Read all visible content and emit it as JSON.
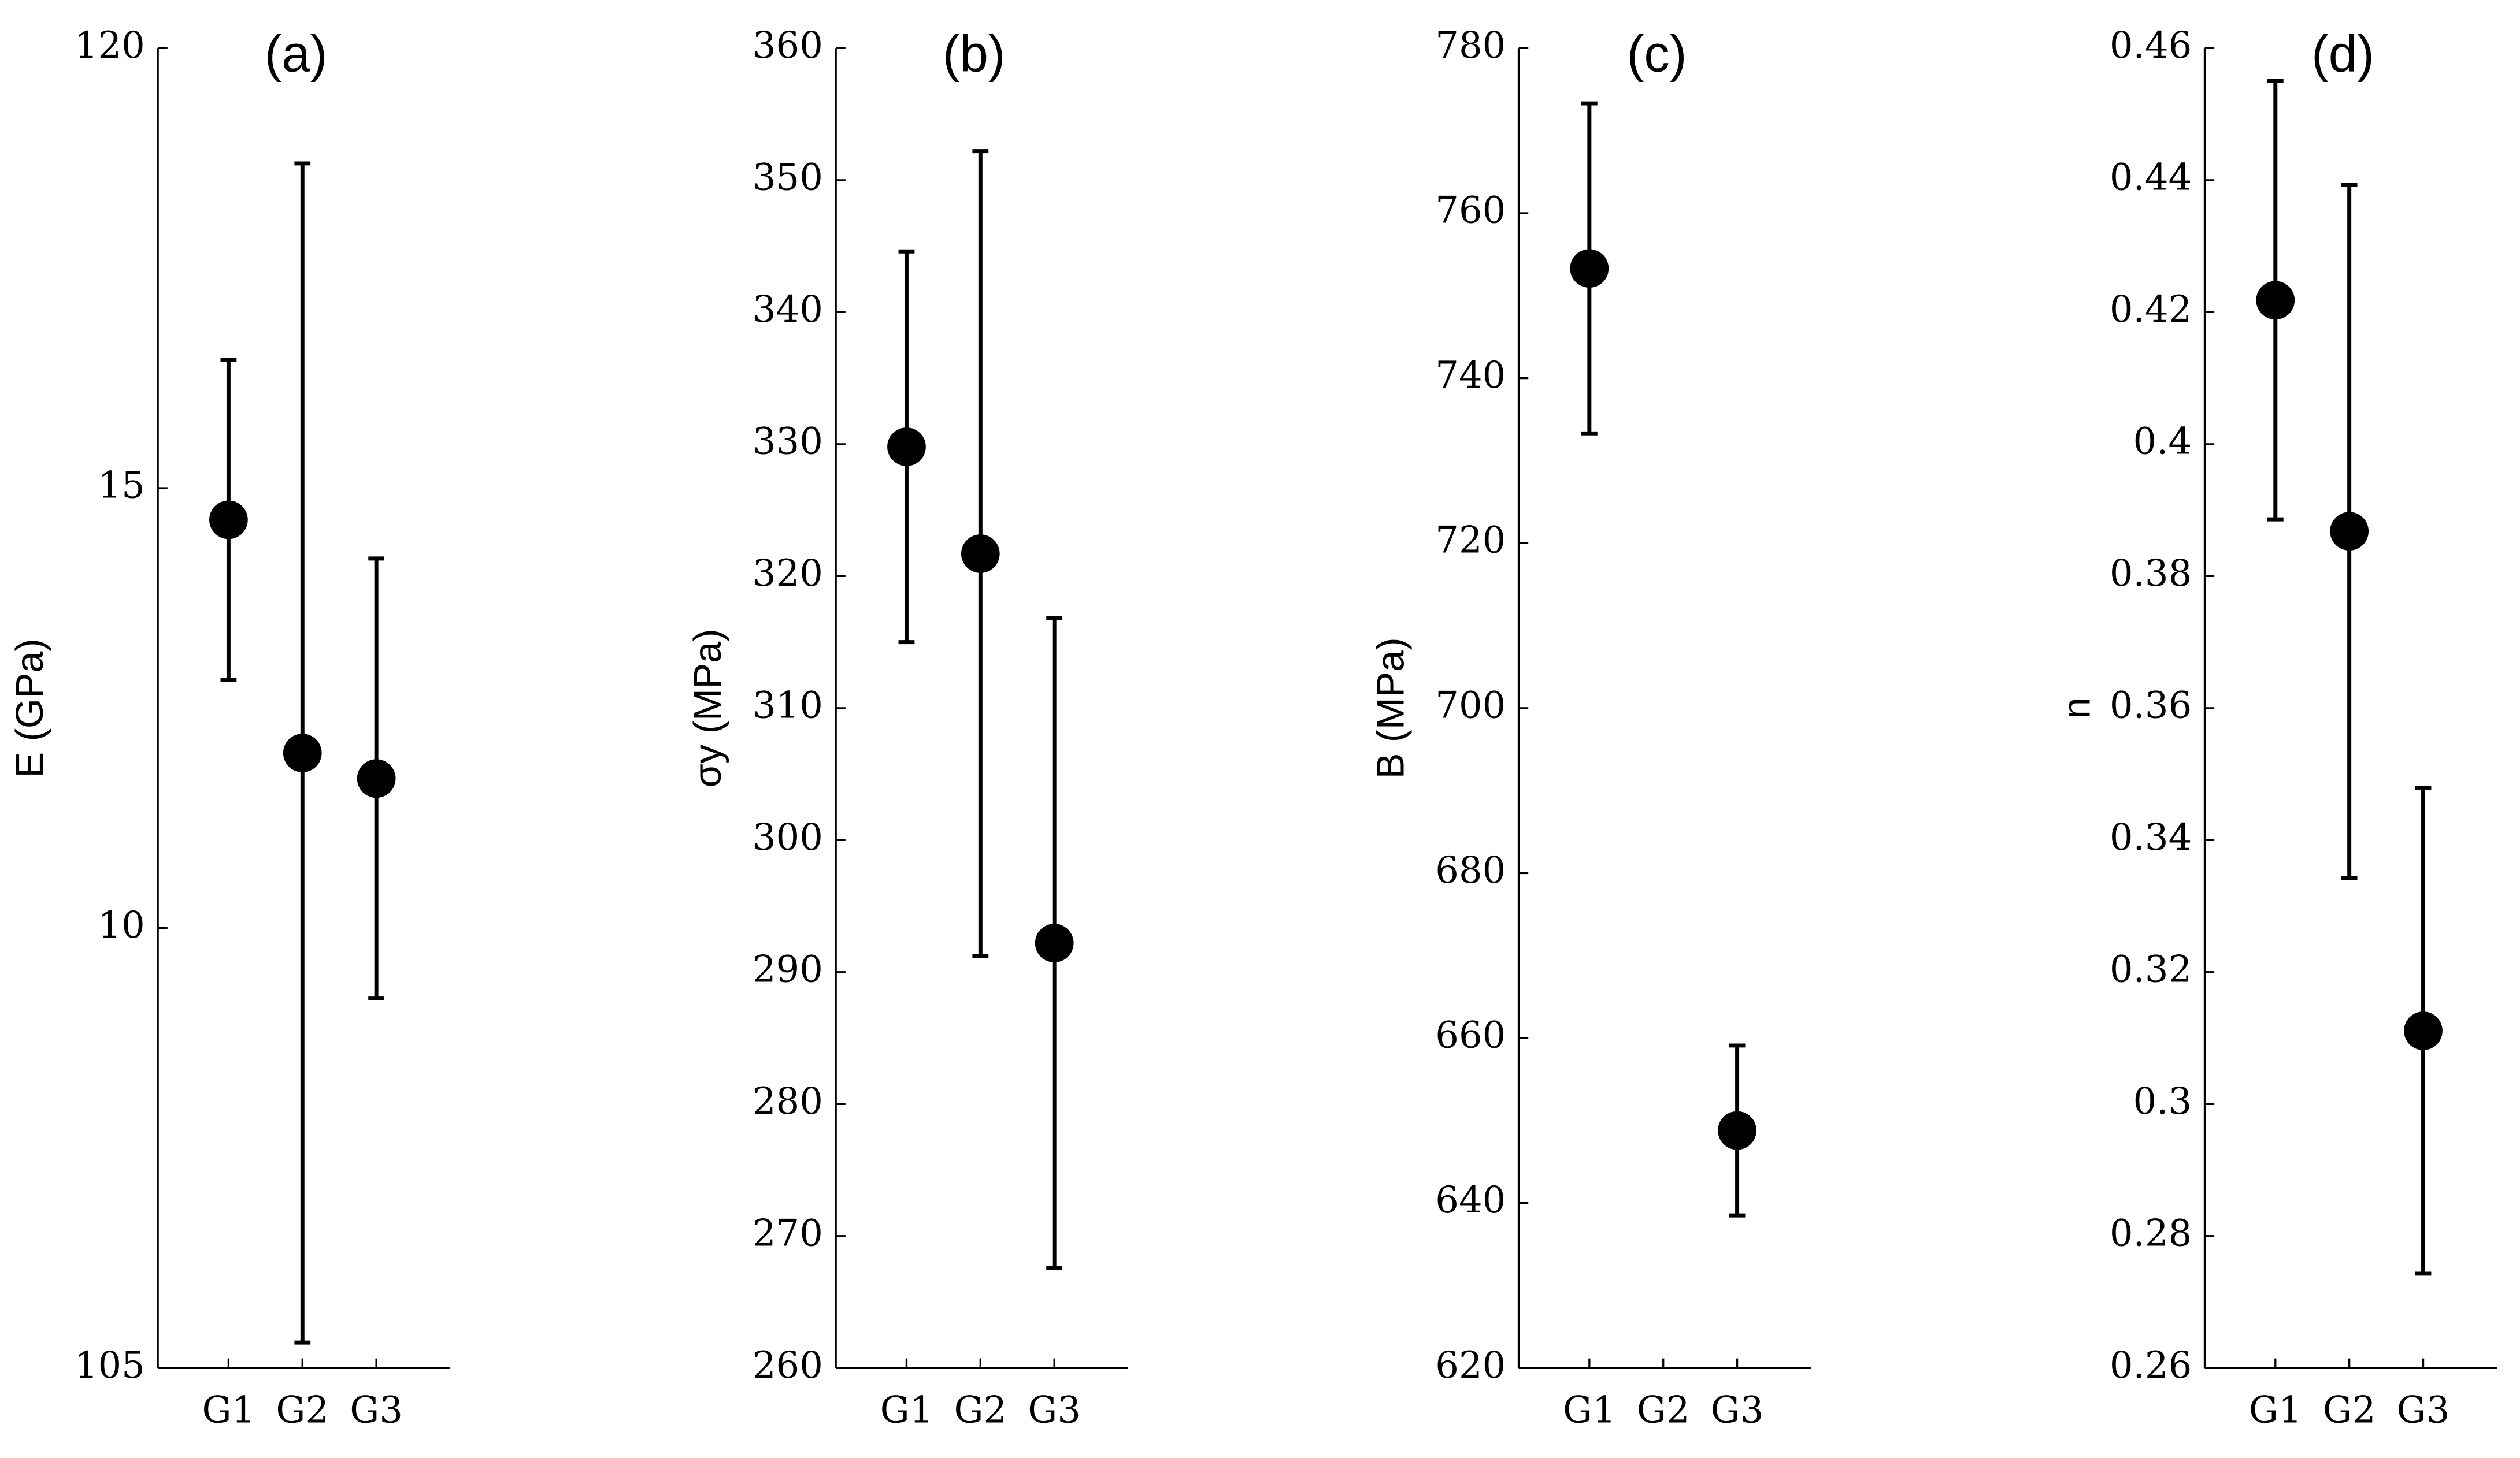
{
  "chart_data": [
    {
      "type": "scatter",
      "title": "(a)",
      "ylabel": "E (GPa)",
      "categories": [
        "G1",
        "G2",
        "G3"
      ],
      "values": [
        114.64,
        111.99,
        111.7
      ],
      "errors": [
        1.82,
        6.7,
        2.5
      ],
      "color": "#000000",
      "ylim": [
        105,
        120
      ],
      "yticks": [
        105,
        {
          "value": 110,
          "label": "10"
        },
        {
          "value": 115,
          "label": "15"
        },
        120
      ]
    },
    {
      "type": "scatter",
      "title": "(b)",
      "ylabel": "σy (MPa)",
      "categories": [
        "G1",
        "G2",
        "G3"
      ],
      "values": [
        329.8,
        321.7,
        292.2
      ],
      "errors": [
        14.8,
        30.5,
        24.6
      ],
      "color": "#000000",
      "ylim": [
        260,
        360
      ],
      "yticks": [
        260,
        270,
        280,
        290,
        300,
        310,
        320,
        330,
        340,
        350,
        360
      ]
    },
    {
      "type": "scatter",
      "title": "(c)",
      "ylabel": "B (MPa)",
      "categories": [
        "G1",
        "G2",
        "G3"
      ],
      "values": [
        753.3,
        null,
        648.8
      ],
      "errors": [
        20,
        null,
        10.3
      ],
      "color": "#000000",
      "ylim": [
        620,
        780
      ],
      "yticks": [
        620,
        640,
        660,
        680,
        700,
        720,
        740,
        760,
        780
      ]
    },
    {
      "type": "scatter",
      "title": "(d)",
      "ylabel": "n",
      "categories": [
        "G1",
        "G2",
        "G3"
      ],
      "values": [
        0.4218,
        0.3868,
        0.3111
      ],
      "errors": [
        0.0332,
        0.0525,
        0.0368
      ],
      "color": "#000000",
      "ylim": [
        0.26,
        0.46
      ],
      "yticks": [
        0.26,
        0.28,
        0.3,
        0.32,
        0.34,
        0.36,
        0.38,
        0.4,
        0.42,
        0.44,
        0.46
      ]
    }
  ]
}
